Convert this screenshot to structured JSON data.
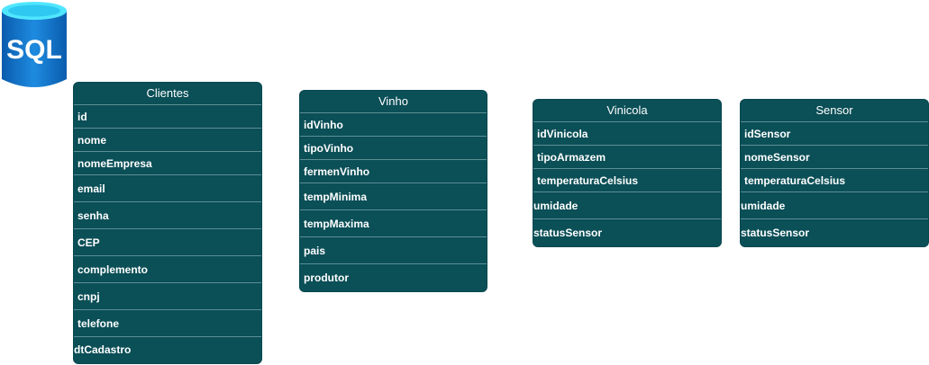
{
  "logo": {
    "text": "SQL",
    "colors": {
      "top": "#50e6ff",
      "body": "#0078d4",
      "dark": "#0a5cad"
    }
  },
  "colors": {
    "table_bg": "#0b4f57",
    "divider": "#5c8f94",
    "text": "#ffffff"
  },
  "tables": {
    "clientes": {
      "title": "Clientes",
      "fields": [
        "id",
        "nome",
        "nomeEmpresa",
        "email",
        "senha",
        "CEP",
        "complemento",
        "cnpj",
        "telefone",
        "dtCadastro"
      ]
    },
    "vinho": {
      "title": "Vinho",
      "fields": [
        "idVinho",
        "tipoVinho",
        "fermenVinho",
        "tempMinima",
        "tempMaxima",
        "pais",
        "produtor"
      ]
    },
    "vinicola": {
      "title": "Vinicola",
      "fields": [
        "idVinicola",
        "tipoArmazem",
        "temperaturaCelsius",
        "umidade",
        "statusSensor"
      ]
    },
    "sensor": {
      "title": "Sensor",
      "fields": [
        "idSensor",
        "nomeSensor",
        "temperaturaCelsius",
        "umidade",
        "statusSensor"
      ]
    }
  }
}
